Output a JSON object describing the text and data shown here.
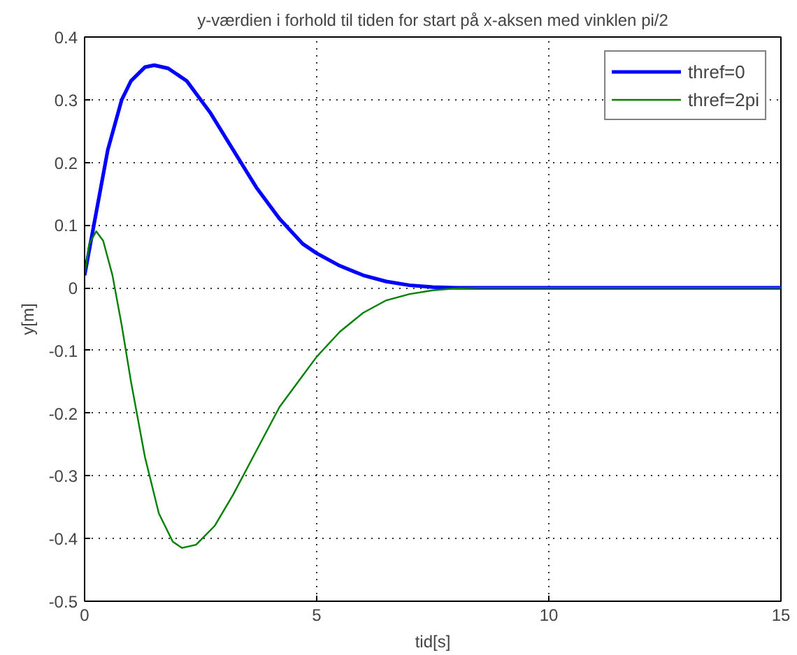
{
  "chart_data": {
    "type": "line",
    "title": "y-værdien i forhold til tiden for start på x-aksen med vinklen pi/2",
    "xlabel": "tid[s]",
    "ylabel": "y[m]",
    "xlim": [
      0,
      15
    ],
    "ylim": [
      -0.5,
      0.4
    ],
    "xticks": [
      0,
      5,
      10,
      15
    ],
    "yticks": [
      -0.5,
      -0.4,
      -0.3,
      -0.2,
      -0.1,
      0,
      0.1,
      0.2,
      0.3,
      0.4
    ],
    "grid": true,
    "legend": "top right",
    "line_style": "solid",
    "series": [
      {
        "name": "thref=0",
        "color": "#0000ff",
        "x": [
          0,
          0.2,
          0.5,
          0.8,
          1.0,
          1.3,
          1.5,
          1.8,
          2.2,
          2.7,
          3.2,
          3.7,
          4.2,
          4.7,
          5.0,
          5.5,
          6.0,
          6.5,
          7.0,
          7.5,
          8.0,
          15
        ],
        "values": [
          0.02,
          0.1,
          0.22,
          0.3,
          0.33,
          0.352,
          0.355,
          0.35,
          0.33,
          0.28,
          0.22,
          0.16,
          0.11,
          0.07,
          0.055,
          0.035,
          0.02,
          0.01,
          0.004,
          0.001,
          0,
          0
        ]
      },
      {
        "name": "thref=2pi",
        "color": "#008000",
        "x": [
          0,
          0.1,
          0.25,
          0.4,
          0.6,
          0.8,
          1.0,
          1.3,
          1.6,
          1.9,
          2.1,
          2.4,
          2.8,
          3.2,
          3.7,
          4.2,
          4.7,
          5.0,
          5.5,
          6.0,
          6.5,
          7.0,
          7.5,
          8.0,
          8.5,
          15
        ],
        "values": [
          0.02,
          0.07,
          0.09,
          0.075,
          0.02,
          -0.06,
          -0.15,
          -0.27,
          -0.36,
          -0.405,
          -0.415,
          -0.41,
          -0.38,
          -0.33,
          -0.26,
          -0.19,
          -0.14,
          -0.11,
          -0.07,
          -0.04,
          -0.02,
          -0.01,
          -0.004,
          -0.001,
          0,
          0
        ]
      }
    ]
  }
}
